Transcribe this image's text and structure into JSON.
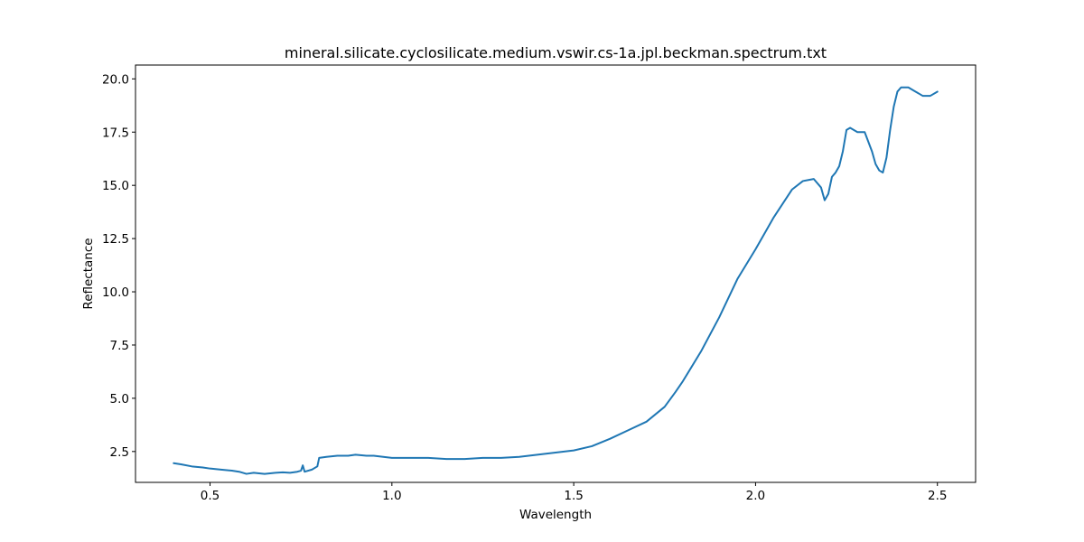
{
  "chart_data": {
    "type": "line",
    "title": "mineral.silicate.cyclosilicate.medium.vswir.cs-1a.jpl.beckman.spectrum.txt",
    "xlabel": "Wavelength",
    "ylabel": "Reflectance",
    "xlim": [
      0.295,
      2.605
    ],
    "ylim": [
      1.05,
      20.65
    ],
    "xticks": [
      0.5,
      1.0,
      1.5,
      2.0,
      2.5
    ],
    "xtick_labels": [
      "0.5",
      "1.0",
      "1.5",
      "2.0",
      "2.5"
    ],
    "yticks": [
      2.5,
      5.0,
      7.5,
      10.0,
      12.5,
      15.0,
      17.5,
      20.0
    ],
    "ytick_labels": [
      "2.5",
      "5.0",
      "7.5",
      "10.0",
      "12.5",
      "15.0",
      "17.5",
      "20.0"
    ],
    "grid": false,
    "legend": "none",
    "series": [
      {
        "color": "#1f77b4",
        "x": [
          0.4,
          0.42,
          0.45,
          0.48,
          0.5,
          0.53,
          0.56,
          0.58,
          0.6,
          0.62,
          0.65,
          0.68,
          0.7,
          0.72,
          0.74,
          0.75,
          0.755,
          0.76,
          0.78,
          0.795,
          0.8,
          0.82,
          0.85,
          0.88,
          0.9,
          0.93,
          0.95,
          1.0,
          1.05,
          1.1,
          1.15,
          1.2,
          1.25,
          1.3,
          1.35,
          1.4,
          1.45,
          1.5,
          1.55,
          1.6,
          1.65,
          1.7,
          1.75,
          1.78,
          1.8,
          1.85,
          1.9,
          1.95,
          2.0,
          2.05,
          2.1,
          2.13,
          2.16,
          2.18,
          2.19,
          2.2,
          2.21,
          2.22,
          2.23,
          2.24,
          2.25,
          2.26,
          2.27,
          2.28,
          2.3,
          2.32,
          2.33,
          2.34,
          2.35,
          2.36,
          2.37,
          2.38,
          2.39,
          2.4,
          2.42,
          2.44,
          2.46,
          2.48,
          2.5
        ],
        "y": [
          1.95,
          1.9,
          1.8,
          1.75,
          1.7,
          1.65,
          1.6,
          1.55,
          1.45,
          1.5,
          1.45,
          1.5,
          1.52,
          1.5,
          1.55,
          1.6,
          1.85,
          1.55,
          1.65,
          1.8,
          2.2,
          2.25,
          2.3,
          2.3,
          2.35,
          2.3,
          2.3,
          2.2,
          2.2,
          2.2,
          2.15,
          2.15,
          2.2,
          2.2,
          2.25,
          2.35,
          2.45,
          2.55,
          2.75,
          3.1,
          3.5,
          3.9,
          4.6,
          5.3,
          5.8,
          7.2,
          8.8,
          10.6,
          12.0,
          13.5,
          14.8,
          15.2,
          15.3,
          14.9,
          14.3,
          14.6,
          15.4,
          15.6,
          15.9,
          16.6,
          17.6,
          17.7,
          17.6,
          17.5,
          17.5,
          16.6,
          16.0,
          15.7,
          15.6,
          16.3,
          17.6,
          18.7,
          19.4,
          19.6,
          19.6,
          19.4,
          19.2,
          19.2,
          19.4
        ]
      }
    ]
  }
}
